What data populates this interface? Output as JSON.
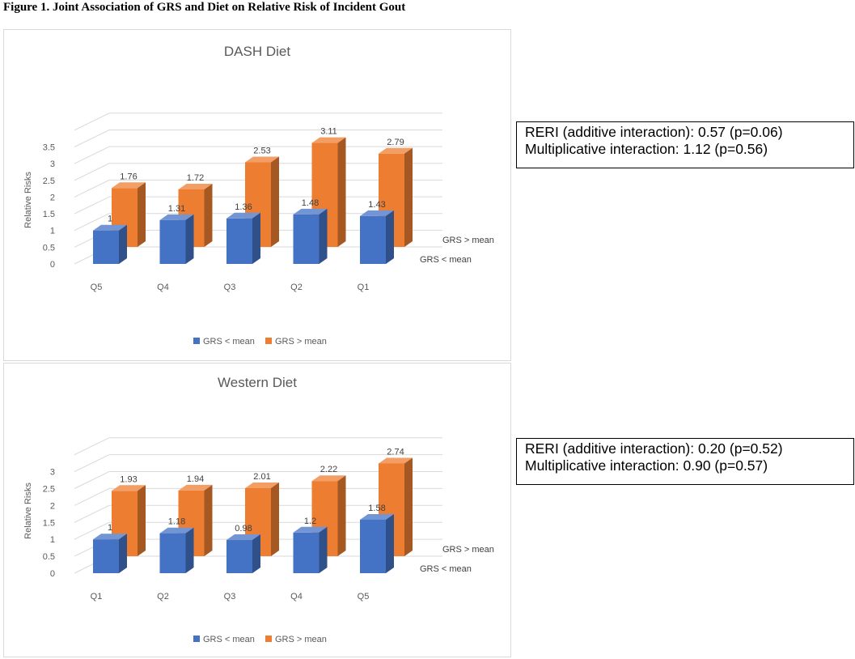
{
  "figure_title": "Figure 1. Joint Association of GRS and Diet on Relative Risk of Incident Gout",
  "notes": {
    "dash": {
      "line1": "RERI (additive interaction): 0.57 (p=0.06)",
      "line2": "Multiplicative interaction: 1.12 (p=0.56)"
    },
    "western": {
      "line1": "RERI (additive interaction): 0.20 (p=0.52)",
      "line2": "Multiplicative interaction: 0.90 (p=0.57)"
    }
  },
  "colors": {
    "low": "#4472c4",
    "high": "#ed7d31",
    "grid": "#d9d9d9"
  },
  "chart_data": [
    {
      "type": "bar",
      "title": "DASH Diet",
      "ylabel": "Relative Risks",
      "xlabel": "",
      "categories": [
        "Q5",
        "Q4",
        "Q3",
        "Q2",
        "Q1"
      ],
      "yticks": [
        "0",
        "0.5",
        "1",
        "1.5",
        "2",
        "2.5",
        "3",
        "3.5"
      ],
      "ylim": [
        0,
        4
      ],
      "grid": true,
      "legend_position": "bottom",
      "depth_labels": [
        "GRS > mean",
        "GRS < mean"
      ],
      "series": [
        {
          "name": "GRS < mean",
          "values": [
            1,
            1.31,
            1.36,
            1.48,
            1.43
          ],
          "labels": [
            "1",
            "1.31",
            "1.36",
            "1.48",
            "1.43"
          ]
        },
        {
          "name": "GRS > mean",
          "values": [
            1.76,
            1.72,
            2.53,
            3.11,
            2.79
          ],
          "labels": [
            "1.76",
            "1.72",
            "2.53",
            "3.11",
            "2.79"
          ]
        }
      ]
    },
    {
      "type": "bar",
      "title": "Western Diet",
      "ylabel": "Relative Risks",
      "xlabel": "",
      "categories": [
        "Q1",
        "Q2",
        "Q3",
        "Q4",
        "Q5"
      ],
      "yticks": [
        "0",
        "0.5",
        "1",
        "1.5",
        "2",
        "2.5",
        "3"
      ],
      "ylim": [
        0,
        3.5
      ],
      "grid": true,
      "legend_position": "bottom",
      "depth_labels": [
        "GRS > mean",
        "GRS < mean"
      ],
      "series": [
        {
          "name": "GRS < mean",
          "values": [
            1,
            1.18,
            0.98,
            1.2,
            1.58
          ],
          "labels": [
            "1",
            "1.18",
            "0.98",
            "1.2",
            "1.58"
          ]
        },
        {
          "name": "GRS > mean",
          "values": [
            1.93,
            1.94,
            2.01,
            2.22,
            2.74
          ],
          "labels": [
            "1.93",
            "1.94",
            "2.01",
            "2.22",
            "2.74"
          ]
        }
      ]
    }
  ]
}
